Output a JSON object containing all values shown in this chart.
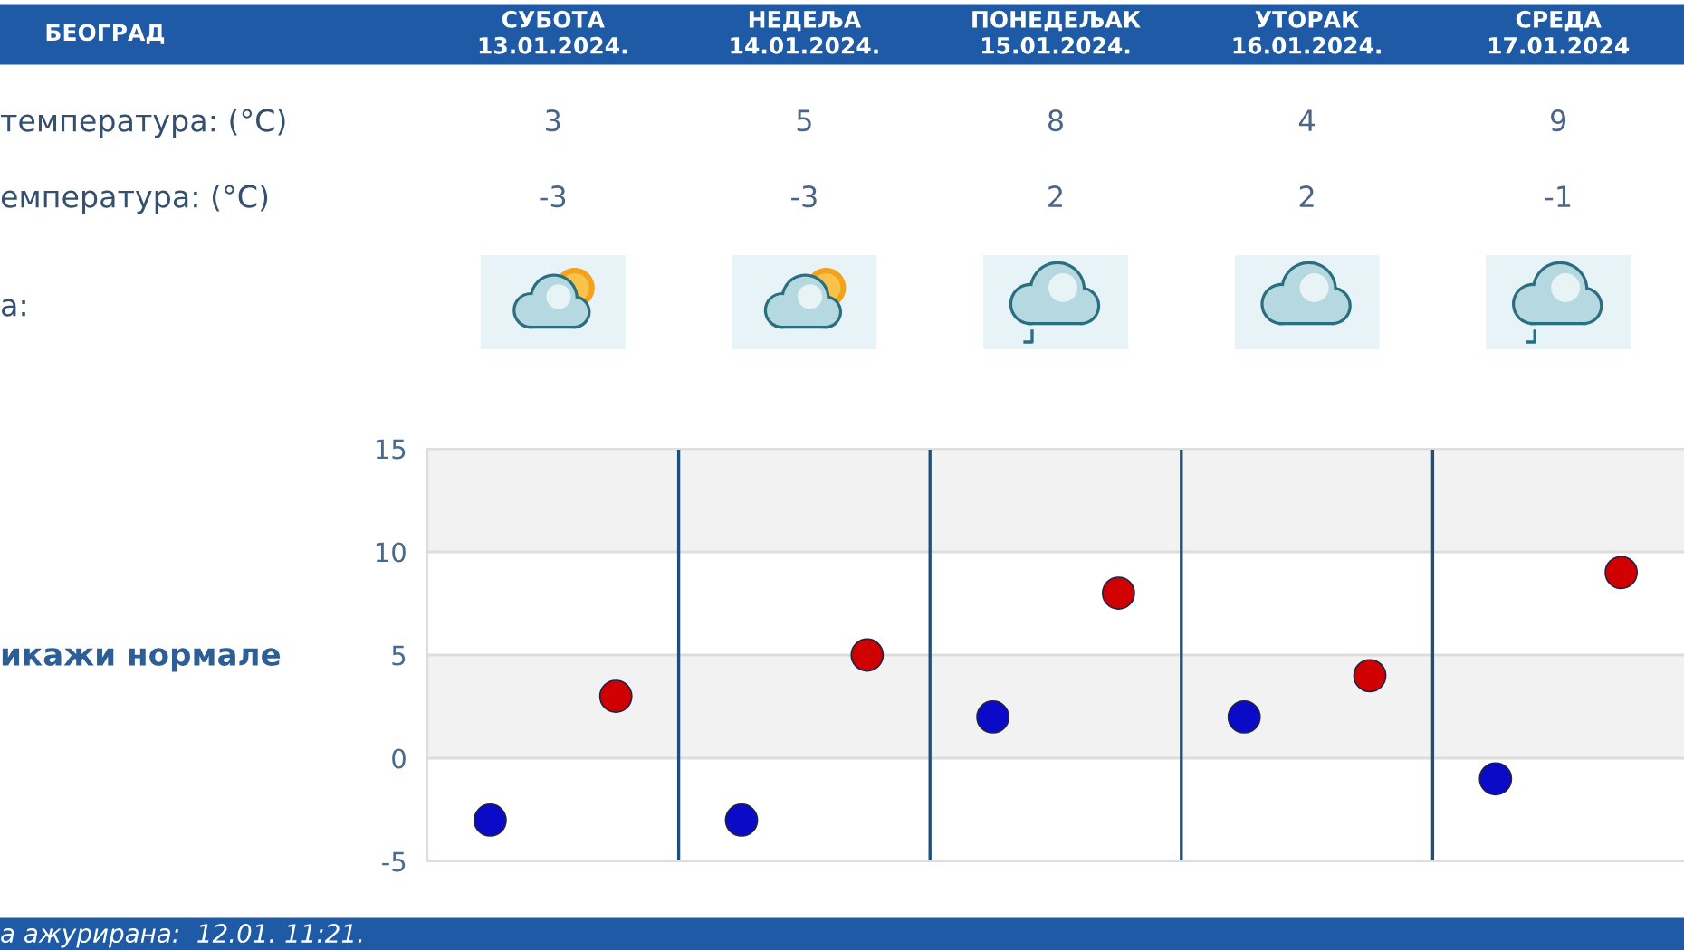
{
  "chart_data": {
    "type": "scatter",
    "title": "БЕОГРАД",
    "categories": [
      null,
      null,
      null,
      null,
      null
    ],
    "ylim": [
      -5,
      15
    ],
    "yticks": [
      -5,
      0,
      5,
      10,
      15
    ],
    "series": [
      {
        "color": "#0a0ac8",
        "values": [
          -3,
          -3,
          2,
          2,
          -1
        ]
      },
      {
        "color": "#d00000",
        "values": [
          3,
          5,
          8,
          4,
          9
        ]
      }
    ],
    "data_labels": true,
    "marker": "circle",
    "grid": "y",
    "bands": [
      {
        "axis": "y",
        "from": 10,
        "to": 15,
        "color": "#f2f2f2"
      },
      {
        "axis": "y",
        "from": 0,
        "to": 5,
        "color": "#f2f2f2"
      }
    ],
    "annotations": [
      "СУБОТА\n13.01.2024.",
      "НЕДЕЉА\n14.01.2024.",
      "ПОНЕДЕЉАК\n15.01.2024.",
      "УТОРАК\n16.01.2024.",
      "СРЕДА\n17.01.2024",
      "температура: (°C)",
      "емпература: (°C)",
      "а:",
      "икажи нормале",
      "а ажурирана:  12.01. 11:21."
    ]
  }
}
